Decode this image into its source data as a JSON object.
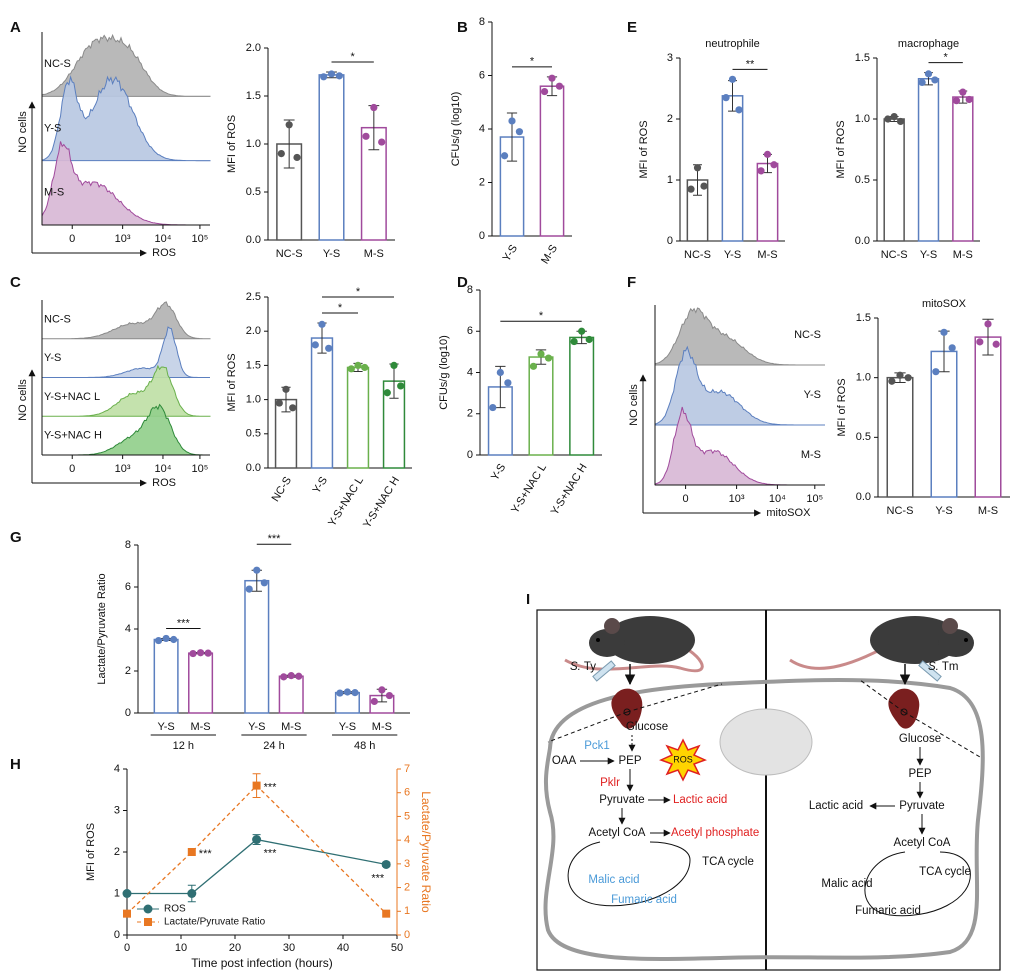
{
  "panels": [
    "A",
    "B",
    "C",
    "D",
    "E",
    "F",
    "G",
    "H",
    "I"
  ],
  "histograms": [
    {
      "labels": [
        "NC-S",
        "Y-S",
        "M-S"
      ],
      "ylabel": "NO cells",
      "xlabel": "ROS",
      "xticks": [
        "0",
        "10³",
        "10⁴",
        "10⁵"
      ]
    },
    {
      "labels": [
        "NC-S",
        "Y-S",
        "Y-S+NAC L",
        "Y-S+NAC H"
      ],
      "ylabel": "NO cells",
      "xlabel": "ROS",
      "xticks": [
        "0",
        "10³",
        "10⁴",
        "10⁵"
      ]
    },
    {
      "labels": [
        "NC-S",
        "Y-S",
        "M-S"
      ],
      "ylabel": "NO cells",
      "xlabel": "mitoSOX",
      "xticks": [
        "0",
        "10³",
        "10⁴",
        "10⁵"
      ]
    }
  ],
  "chart_data": [
    {
      "type": "bar",
      "ylabel": "MFI of ROS",
      "categories": [
        "NC-S",
        "Y-S",
        "M-S"
      ],
      "colors": [
        "#555555",
        "#5b7fbf",
        "#a04a9c"
      ],
      "values": [
        1.0,
        1.72,
        1.17
      ],
      "errors": [
        0.25,
        0.03,
        0.23
      ],
      "points": [
        [
          0.9,
          1.2,
          0.86
        ],
        [
          1.7,
          1.73,
          1.71
        ],
        [
          1.08,
          1.38,
          1.02
        ]
      ],
      "ylim": [
        0,
        2
      ],
      "yticks": [
        {
          "value": 0,
          "label": "0.0"
        },
        0.5,
        {
          "value": 1,
          "label": "1.0"
        },
        1.5,
        {
          "value": 2,
          "label": "2.0"
        }
      ],
      "annotations": [
        {
          "label": "*",
          "between": [
            "Y-S",
            "M-S"
          ]
        }
      ]
    },
    {
      "type": "bar",
      "ylabel": "CFUs/g (log10)",
      "categories": [
        "Y-S",
        "M-S"
      ],
      "colors": [
        "#5b7fbf",
        "#a04a9c"
      ],
      "values": [
        3.7,
        5.6
      ],
      "errors": [
        0.9,
        0.35
      ],
      "points": [
        [
          3.0,
          4.3,
          3.9
        ],
        [
          5.4,
          5.9,
          5.6
        ]
      ],
      "ylim": [
        0,
        8
      ],
      "yticks": [
        0,
        2,
        4,
        6,
        8
      ],
      "annotations": [
        {
          "label": "*",
          "between": [
            "Y-S",
            "M-S"
          ]
        }
      ]
    },
    {
      "type": "bar",
      "ylabel": "MFI of ROS",
      "categories": [
        "NC-S",
        "Y-S",
        "Y-S+NAC L",
        "Y-S+NAC H"
      ],
      "colors": [
        "#555555",
        "#5b7fbf",
        "#6ab04c",
        "#2f8a3a"
      ],
      "values": [
        1.0,
        1.9,
        1.47,
        1.27
      ],
      "errors": [
        0.18,
        0.22,
        0.06,
        0.25
      ],
      "points": [
        [
          0.95,
          1.15,
          0.88
        ],
        [
          1.8,
          2.1,
          1.75
        ],
        [
          1.45,
          1.5,
          1.47
        ],
        [
          1.1,
          1.5,
          1.2
        ]
      ],
      "ylim": [
        0,
        2.5
      ],
      "yticks": [
        {
          "value": 0,
          "label": "0.0"
        },
        0.5,
        {
          "value": 1,
          "label": "1.0"
        },
        1.5,
        {
          "value": 2,
          "label": "2.0"
        },
        2.5
      ],
      "annotations": [
        {
          "label": "*",
          "between": [
            "Y-S",
            "Y-S+NAC L"
          ]
        },
        {
          "label": "*",
          "between": [
            "Y-S",
            "Y-S+NAC H"
          ]
        }
      ]
    },
    {
      "type": "bar",
      "ylabel": "CFUs/g (log10)",
      "categories": [
        "Y-S",
        "Y-S+NAC L",
        "Y-S+NAC H"
      ],
      "colors": [
        "#5b7fbf",
        "#6ab04c",
        "#2f8a3a"
      ],
      "values": [
        3.3,
        4.75,
        5.7
      ],
      "errors": [
        1.0,
        0.35,
        0.3
      ],
      "points": [
        [
          2.3,
          4.0,
          3.5
        ],
        [
          4.3,
          4.9,
          4.7
        ],
        [
          5.5,
          6.0,
          5.6
        ]
      ],
      "ylim": [
        0,
        8
      ],
      "yticks": [
        0,
        2,
        4,
        6,
        8
      ],
      "annotations": [
        {
          "label": "*",
          "between": [
            "Y-S",
            "Y-S+NAC H"
          ]
        }
      ]
    },
    {
      "type": "bar",
      "title": "neutrophile",
      "ylabel": "MFI of ROS",
      "categories": [
        "NC-S",
        "Y-S",
        "M-S"
      ],
      "colors": [
        "#555555",
        "#5b7fbf",
        "#a04a9c"
      ],
      "values": [
        1.0,
        2.38,
        1.27
      ],
      "errors": [
        0.25,
        0.25,
        0.15
      ],
      "points": [
        [
          0.85,
          1.2,
          0.9
        ],
        [
          2.35,
          2.65,
          2.15
        ],
        [
          1.15,
          1.42,
          1.25
        ]
      ],
      "ylim": [
        0,
        3
      ],
      "yticks": [
        0,
        1,
        2,
        3
      ],
      "annotations": [
        {
          "label": "**",
          "between": [
            "Y-S",
            "M-S"
          ]
        }
      ]
    },
    {
      "type": "bar",
      "title": "macrophage",
      "ylabel": "MFI of ROS",
      "categories": [
        "NC-S",
        "Y-S",
        "M-S"
      ],
      "colors": [
        "#555555",
        "#5b7fbf",
        "#a04a9c"
      ],
      "values": [
        1.0,
        1.33,
        1.18
      ],
      "errors": [
        0.02,
        0.05,
        0.05
      ],
      "points": [
        [
          1.0,
          1.02,
          0.98
        ],
        [
          1.3,
          1.37,
          1.32
        ],
        [
          1.15,
          1.22,
          1.16
        ]
      ],
      "ylim": [
        0,
        1.5
      ],
      "yticks": [
        {
          "value": 0,
          "label": "0.0"
        },
        0.5,
        {
          "value": 1,
          "label": "1.0"
        },
        1.5
      ],
      "annotations": [
        {
          "label": "*",
          "between": [
            "Y-S",
            "M-S"
          ]
        }
      ]
    },
    {
      "type": "bar",
      "title": "mitoSOX",
      "ylabel": "MFI of ROS",
      "categories": [
        "NC-S",
        "Y-S",
        "M-S"
      ],
      "colors": [
        "#555555",
        "#5b7fbf",
        "#a04a9c"
      ],
      "values": [
        1.0,
        1.22,
        1.34
      ],
      "errors": [
        0.04,
        0.17,
        0.15
      ],
      "points": [
        [
          0.97,
          1.02,
          1.0
        ],
        [
          1.05,
          1.38,
          1.25
        ],
        [
          1.3,
          1.45,
          1.28
        ]
      ],
      "ylim": [
        0,
        1.5
      ],
      "yticks": [
        {
          "value": 0,
          "label": "0.0"
        },
        0.5,
        {
          "value": 1,
          "label": "1.0"
        },
        1.5
      ],
      "annotations": []
    },
    {
      "type": "grouped-bar",
      "ylabel": "Lactate/Pyruvate Ratio",
      "categories": [
        "12 h",
        "24 h",
        "48 h"
      ],
      "series": [
        {
          "name": "Y-S",
          "color": "#5b7fbf",
          "values": [
            3.5,
            6.3,
            0.97
          ],
          "errors": [
            0.05,
            0.5,
            0.05
          ],
          "points": [
            [
              3.45,
              3.55,
              3.5
            ],
            [
              5.9,
              6.8,
              6.2
            ],
            [
              0.95,
              1.0,
              0.97
            ]
          ]
        },
        {
          "name": "M-S",
          "color": "#a04a9c",
          "values": [
            2.85,
            1.75,
            0.83
          ],
          "errors": [
            0.03,
            0.05,
            0.3
          ],
          "points": [
            [
              2.83,
              2.87,
              2.85
            ],
            [
              1.72,
              1.78,
              1.75
            ],
            [
              0.55,
              1.1,
              0.83
            ]
          ]
        }
      ],
      "ylim": [
        0,
        8
      ],
      "yticks": [
        0,
        2,
        4,
        6,
        8
      ],
      "annotations": [
        {
          "label": "***",
          "category": "12 h"
        },
        {
          "label": "***",
          "category": "24 h"
        }
      ]
    },
    {
      "type": "line",
      "xlabel": "Time post infection (hours)",
      "ylabel": "MFI of ROS",
      "y2label": "Lactate/Pyruvate Ratio",
      "x": [
        0,
        12,
        24,
        48
      ],
      "series": [
        {
          "name": "ROS",
          "color": "#2f6f73",
          "marker": "circle",
          "linestyle": "solid",
          "values": [
            1.0,
            1.0,
            2.3,
            1.7
          ],
          "errors": [
            0,
            0.2,
            0.12,
            0.05
          ]
        },
        {
          "name": "Lactate/Pyruvate Ratio",
          "color": "#e87722",
          "marker": "square",
          "linestyle": "dashed",
          "axis": "y2",
          "values": [
            0.9,
            3.5,
            6.3,
            0.9
          ],
          "errors": [
            0,
            0,
            0.5,
            0
          ]
        }
      ],
      "xlim": [
        0,
        50
      ],
      "xticks": [
        0,
        10,
        20,
        30,
        40,
        50
      ],
      "ylim": [
        0,
        4
      ],
      "yticks": [
        0,
        1,
        2,
        3,
        4
      ],
      "y2lim": [
        0,
        7
      ],
      "y2ticks": [
        0,
        1,
        2,
        3,
        4,
        5,
        6,
        7
      ],
      "legend": "lower left",
      "annotations": [
        {
          "label": "***",
          "series": "Lactate/Pyruvate Ratio",
          "x": 12
        },
        {
          "label": "***",
          "series": "Lactate/Pyruvate Ratio",
          "x": 24
        },
        {
          "label": "***",
          "series": "ROS",
          "x": 24
        },
        {
          "label": "***",
          "series": "ROS",
          "x": 48
        }
      ]
    }
  ],
  "diagram": {
    "infections": [
      {
        "genus": "S.",
        "strain": "Ty"
      },
      {
        "genus": "S.",
        "strain": "Tm"
      }
    ],
    "left": {
      "glucose": "Glucose",
      "oaa": "OAA",
      "pck1": "Pck1",
      "pep": "PEP",
      "ros": "ROS",
      "pklr": "Pklr",
      "pyruvate": "Pyruvate",
      "lactic": "Lactic acid",
      "acetyl_coa": "Acetyl CoA",
      "acetyl_phosphate": "Acetyl phosphate",
      "tca": "TCA cycle",
      "malic": "Malic acid",
      "fumaric": "Fumaric acid"
    },
    "right": {
      "glucose": "Glucose",
      "pep": "PEP",
      "pyruvate": "Pyruvate",
      "lactic": "Lactic acid",
      "acetyl_coa": "Acetyl CoA",
      "tca": "TCA cycle",
      "malic": "Malic acid",
      "fumaric": "Fumaric acid"
    }
  }
}
